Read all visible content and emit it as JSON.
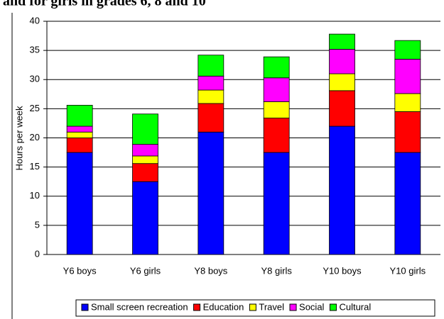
{
  "chart_data": {
    "type": "stacked_bar",
    "title": "and for girls in grades 6, 8 and 10",
    "y_label": "Hours per week",
    "categories": [
      "Y6 boys",
      "Y6 girls",
      "Y8 boys",
      "Y8 girls",
      "Y10 boys",
      "Y10 girls"
    ],
    "series": [
      {
        "name": "Small screen recreation",
        "color": "#0000ff",
        "values": [
          17.5,
          12.5,
          21,
          17.5,
          22,
          17.5
        ]
      },
      {
        "name": "Education",
        "color": "#ff0000",
        "values": [
          2.5,
          3.1,
          4.9,
          5.9,
          6.1,
          7
        ]
      },
      {
        "name": "Travel",
        "color": "#ffff00",
        "values": [
          1,
          1.3,
          2.3,
          2.8,
          2.9,
          3.1
        ]
      },
      {
        "name": "Social",
        "color": "#ff00ff",
        "values": [
          1,
          2,
          2.4,
          4.1,
          4.2,
          5.9
        ]
      },
      {
        "name": "Cultural",
        "color": "#00ff00",
        "values": [
          3.6,
          5.2,
          3.6,
          3.6,
          2.6,
          3.2
        ]
      }
    ],
    "ylim": [
      0,
      40
    ],
    "yticks": [
      0,
      5,
      10,
      15,
      20,
      25,
      30,
      35,
      40
    ],
    "grid": true,
    "legend": "bottom"
  }
}
